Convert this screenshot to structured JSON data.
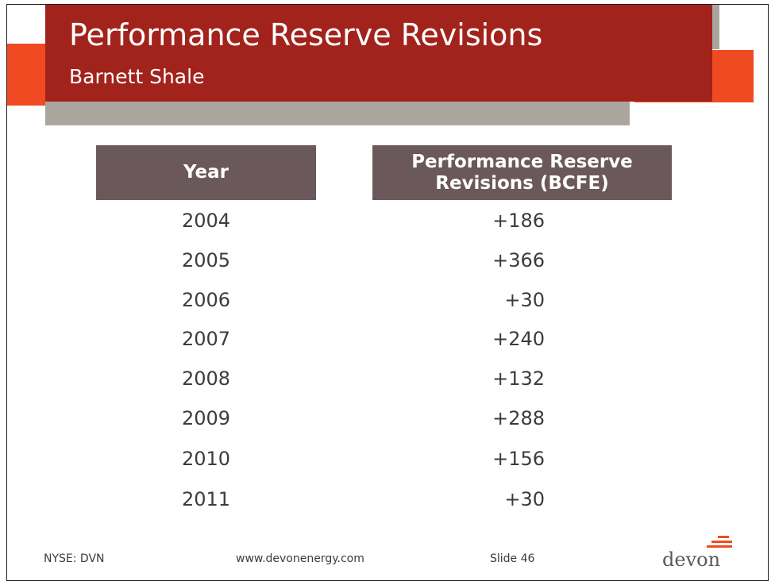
{
  "header": {
    "title": "Performance Reserve Revisions",
    "subtitle": "Barnett Shale"
  },
  "table": {
    "headers": {
      "year": "Year",
      "revisions": "Performance Reserve Revisions (BCFE)"
    },
    "rows": [
      {
        "year": "2004",
        "revision": "+186"
      },
      {
        "year": "2005",
        "revision": "+366"
      },
      {
        "year": "2006",
        "revision": "+30"
      },
      {
        "year": "2007",
        "revision": "+240"
      },
      {
        "year": "2008",
        "revision": "+132"
      },
      {
        "year": "2009",
        "revision": "+288"
      },
      {
        "year": "2010",
        "revision": "+156"
      },
      {
        "year": "2011",
        "revision": "+30"
      }
    ]
  },
  "footer": {
    "ticker": "NYSE: DVN",
    "website": "www.devonenergy.com",
    "slide": "Slide 46",
    "logo_text": "devon"
  },
  "colors": {
    "banner_red": "#a2231c",
    "accent_orange": "#f04a23",
    "accent_gray": "#aca59e",
    "table_header": "#6b585a"
  }
}
